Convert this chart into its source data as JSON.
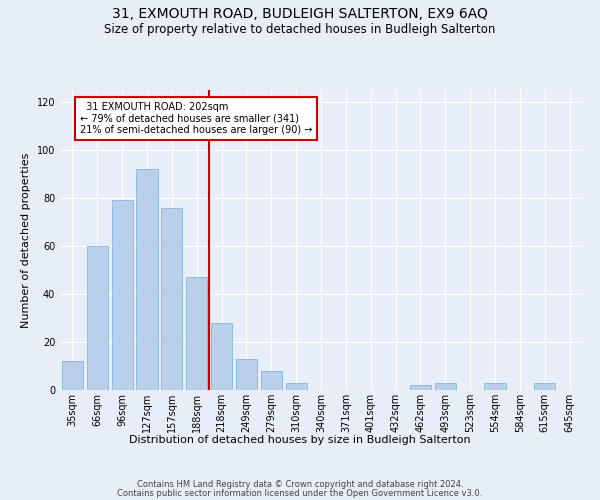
{
  "title": "31, EXMOUTH ROAD, BUDLEIGH SALTERTON, EX9 6AQ",
  "subtitle": "Size of property relative to detached houses in Budleigh Salterton",
  "xlabel": "Distribution of detached houses by size in Budleigh Salterton",
  "ylabel": "Number of detached properties",
  "categories": [
    "35sqm",
    "66sqm",
    "96sqm",
    "127sqm",
    "157sqm",
    "188sqm",
    "218sqm",
    "249sqm",
    "279sqm",
    "310sqm",
    "340sqm",
    "371sqm",
    "401sqm",
    "432sqm",
    "462sqm",
    "493sqm",
    "523sqm",
    "554sqm",
    "584sqm",
    "615sqm",
    "645sqm"
  ],
  "values": [
    12,
    60,
    79,
    92,
    76,
    47,
    28,
    13,
    8,
    3,
    0,
    0,
    0,
    0,
    2,
    3,
    0,
    3,
    0,
    3,
    0
  ],
  "bar_color": "#b8d0ea",
  "bar_edge_color": "#7aafd4",
  "red_line_index": 6,
  "annotation_text": "  31 EXMOUTH ROAD: 202sqm  \n← 79% of detached houses are smaller (341)\n21% of semi-detached houses are larger (90) →",
  "annotation_box_color": "#ffffff",
  "annotation_box_edge": "#cc0000",
  "red_line_color": "#cc0000",
  "ylim": [
    0,
    125
  ],
  "yticks": [
    0,
    20,
    40,
    60,
    80,
    100,
    120
  ],
  "footer1": "Contains HM Land Registry data © Crown copyright and database right 2024.",
  "footer2": "Contains public sector information licensed under the Open Government Licence v3.0.",
  "bg_color": "#e8eef8",
  "plot_bg_color": "#e8eef8",
  "grid_color": "#ffffff",
  "title_fontsize": 10,
  "subtitle_fontsize": 8.5,
  "label_fontsize": 8,
  "tick_fontsize": 7,
  "footer_fontsize": 6
}
